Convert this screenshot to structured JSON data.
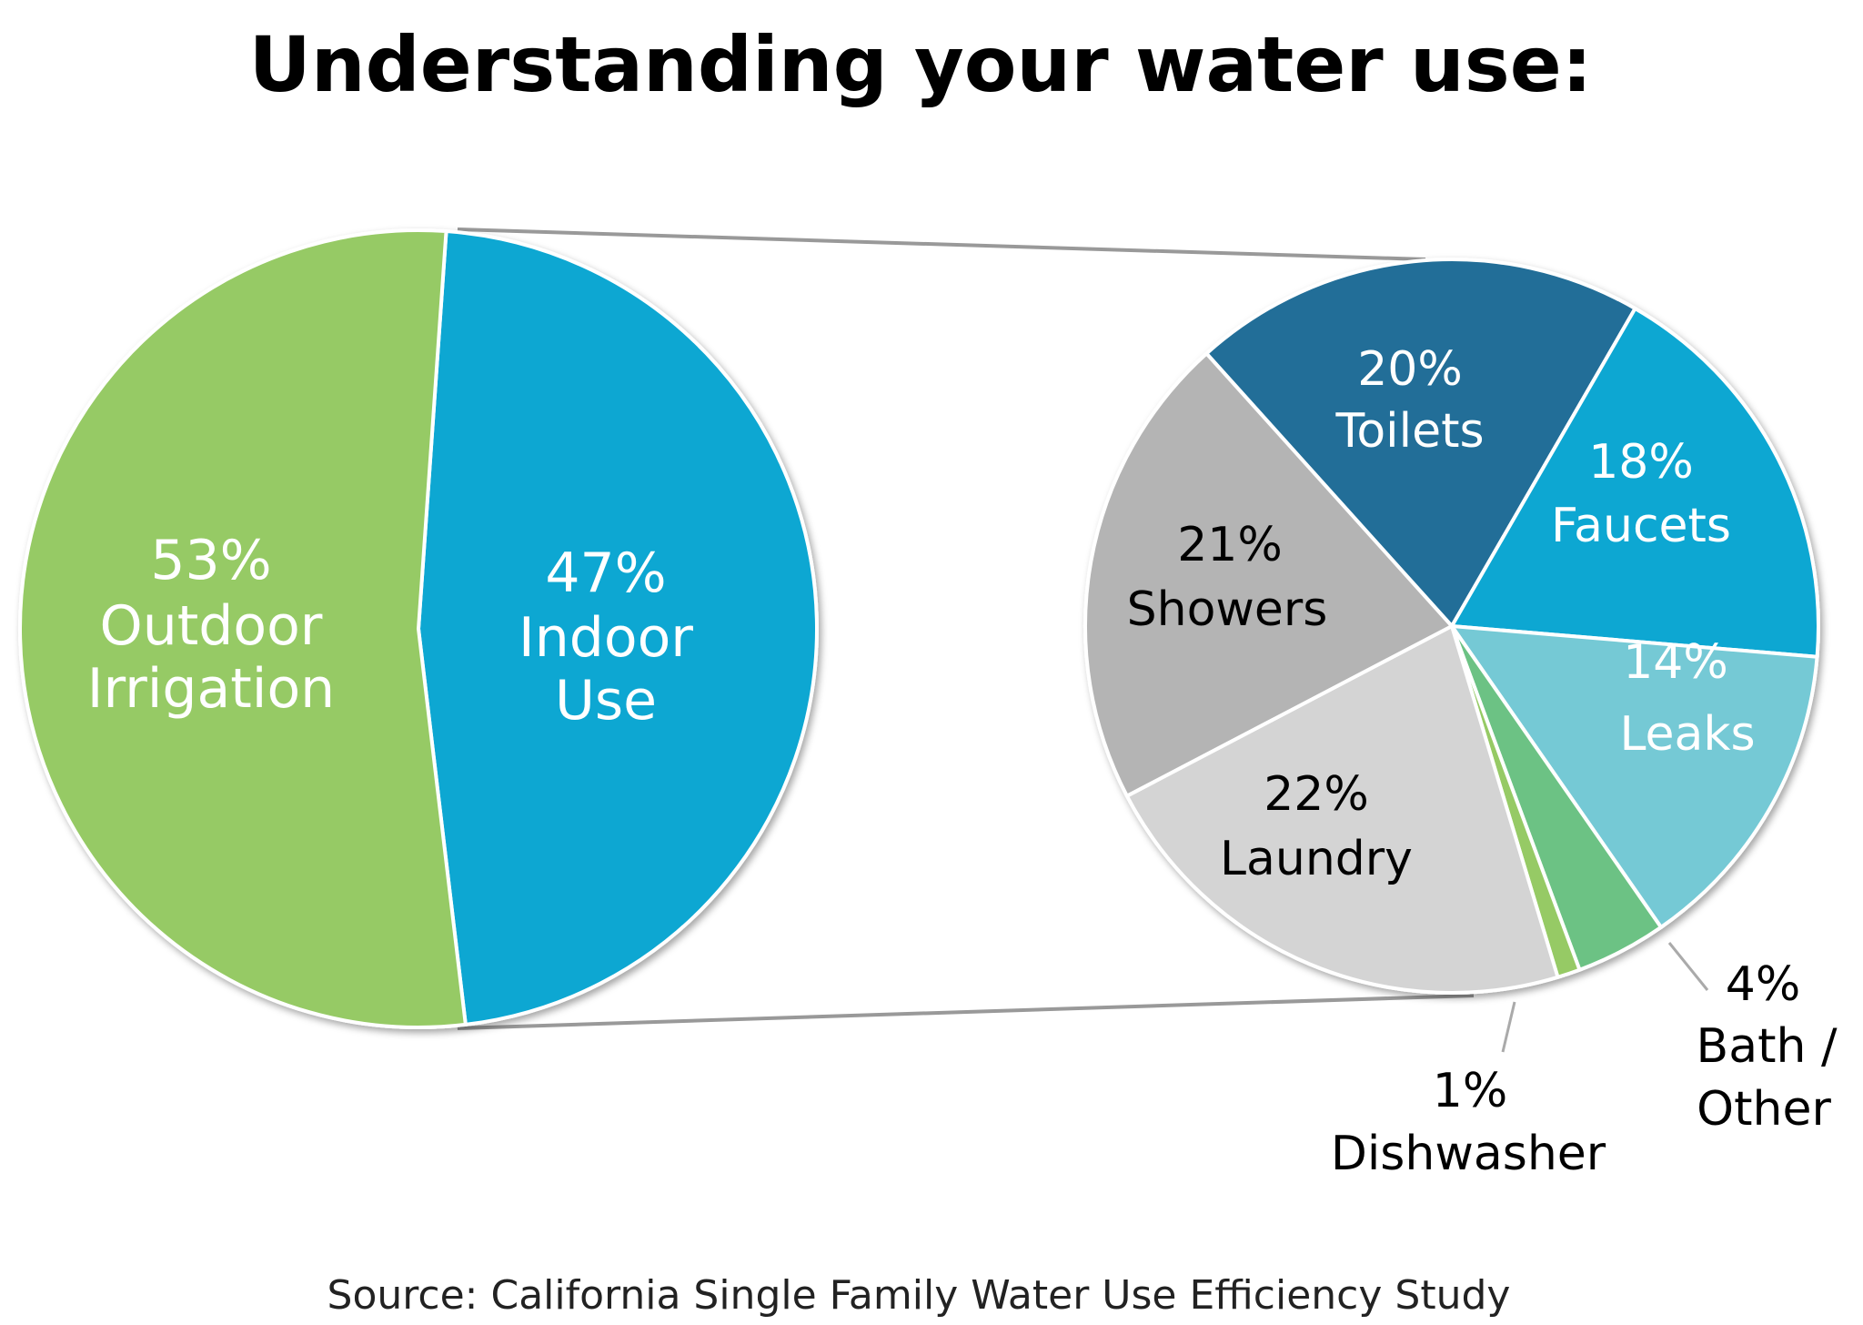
{
  "chart_data": [
    {
      "type": "pie",
      "title": "Understanding your water use:",
      "slices": [
        {
          "label": "Indoor Use",
          "pct_text": "47%",
          "lines": [
            "Indoor",
            "Use"
          ],
          "value": 47,
          "color": "#08a7d2"
        },
        {
          "label": "Outdoor Irrigation",
          "pct_text": "53%",
          "lines": [
            "Outdoor",
            "Irrigation"
          ],
          "value": 53,
          "color": "#96ca65"
        }
      ]
    },
    {
      "type": "pie",
      "breakdown_of": "Indoor Use",
      "slices": [
        {
          "label": "Toilets",
          "pct_text": "20%",
          "lines": [
            "Toilets"
          ],
          "value": 20,
          "color": "#206e98"
        },
        {
          "label": "Faucets",
          "pct_text": "18%",
          "lines": [
            "Faucets"
          ],
          "value": 18,
          "color": "#08a7d2"
        },
        {
          "label": "Leaks",
          "pct_text": "14%",
          "lines": [
            "Leaks"
          ],
          "value": 14,
          "color": "#74c9d5"
        },
        {
          "label": "Bath / Other",
          "pct_text": "4%",
          "lines": [
            "Bath /",
            "Other"
          ],
          "value": 4,
          "color": "#6cc284"
        },
        {
          "label": "Dishwasher",
          "pct_text": "1%",
          "lines": [
            "Dishwasher"
          ],
          "value": 1,
          "color": "#96ca65"
        },
        {
          "label": "Laundry",
          "pct_text": "22%",
          "lines": [
            "Laundry"
          ],
          "value": 22,
          "color": "#d4d4d4"
        },
        {
          "label": "Showers",
          "pct_text": "21%",
          "lines": [
            "Showers"
          ],
          "value": 21,
          "color": "#b4b4b4"
        }
      ]
    }
  ],
  "source": "Source: California Single Family Water Use Efficiency Study"
}
